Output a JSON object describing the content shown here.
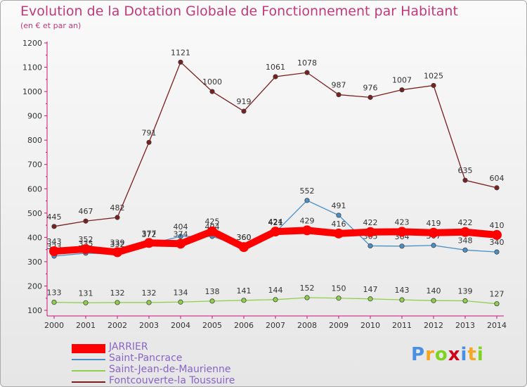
{
  "chart_data": {
    "type": "line",
    "title": "Evolution de la Dotation Globale de Fonctionnement par Habitant",
    "subtitle": "(en € et par an)",
    "x": [
      "2000",
      "2001",
      "2002",
      "2003",
      "2004",
      "2005",
      "2006",
      "2007",
      "2008",
      "2009",
      "2010",
      "2011",
      "2012",
      "2013",
      "2014"
    ],
    "yticks": [
      100,
      200,
      300,
      400,
      500,
      600,
      700,
      800,
      900,
      1000,
      1100,
      1200
    ],
    "ylim": [
      100,
      1200
    ],
    "grid": false,
    "series": [
      {
        "name": "Fontcouverte-la Toussuire",
        "color": "#7a1e1e",
        "values": [
          445,
          467,
          482,
          791,
          1121,
          1000,
          919,
          1061,
          1078,
          987,
          976,
          1007,
          1025,
          635,
          604
        ]
      },
      {
        "name": "Saint-Jean-de-Maurienne",
        "color": "#8ed04a",
        "values": [
          133,
          131,
          132,
          132,
          134,
          138,
          141,
          144,
          152,
          150,
          147,
          143,
          140,
          139,
          127
        ]
      },
      {
        "name": "Saint-Pancrace",
        "color": "#4a90c8",
        "values": [
          323,
          335,
          332,
          372,
          404,
          404,
          360,
          421,
          552,
          491,
          365,
          364,
          367,
          348,
          340
        ]
      },
      {
        "name": "JARRIER",
        "color": "#ff0000",
        "values": [
          343,
          352,
          339,
          377,
          374,
          425,
          360,
          424,
          429,
          416,
          422,
          423,
          419,
          422,
          410
        ]
      }
    ],
    "legend": [
      "JARRIER",
      "Saint-Pancrace",
      "Saint-Jean-de-Maurienne",
      "Fontcouverte-la Toussuire"
    ]
  },
  "brand": {
    "letters": [
      "P",
      "r",
      "o",
      "x",
      "i",
      "t",
      "i"
    ],
    "colors": [
      "#4a90e2",
      "#f5a623",
      "#7ed321",
      "#d0021b",
      "#4a90e2",
      "#f5a623",
      "#7ed321"
    ]
  }
}
